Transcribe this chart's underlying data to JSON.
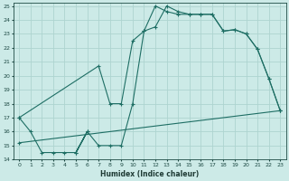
{
  "xlabel": "Humidex (Indice chaleur)",
  "bg_color": "#cceae7",
  "grid_color": "#aed4d0",
  "line_color": "#1e6e64",
  "xlim": [
    -0.5,
    23.5
  ],
  "ylim": [
    14,
    25.2
  ],
  "xticks": [
    0,
    1,
    2,
    3,
    4,
    5,
    6,
    7,
    8,
    9,
    10,
    11,
    12,
    13,
    14,
    15,
    16,
    17,
    18,
    19,
    20,
    21,
    22,
    23
  ],
  "yticks": [
    14,
    15,
    16,
    17,
    18,
    19,
    20,
    21,
    22,
    23,
    24,
    25
  ],
  "line1_x": [
    0,
    1,
    2,
    3,
    4,
    5,
    6,
    5,
    6,
    7,
    8,
    9,
    10,
    11,
    12,
    13,
    14,
    15,
    16,
    17,
    18,
    19,
    20,
    21,
    22,
    23
  ],
  "line1_y": [
    17,
    16,
    14.5,
    14.5,
    14.5,
    14.5,
    16,
    14.5,
    16,
    15.0,
    15.0,
    15.0,
    18.0,
    23.2,
    23.5,
    25.0,
    24.6,
    24.4,
    24.4,
    24.4,
    23.2,
    23.3,
    23.0,
    21.9,
    19.8,
    17.5
  ],
  "line2_x": [
    0,
    7,
    8,
    9,
    10,
    11,
    12,
    13,
    14,
    15,
    16,
    17,
    18,
    19,
    20,
    21,
    22,
    23
  ],
  "line2_y": [
    17,
    20.7,
    18.0,
    18.0,
    22.5,
    23.2,
    25.0,
    24.6,
    24.4,
    24.4,
    24.4,
    24.4,
    23.2,
    23.3,
    23.0,
    21.9,
    19.8,
    17.5
  ],
  "line3_x": [
    0,
    23
  ],
  "line3_y": [
    15.2,
    17.5
  ]
}
